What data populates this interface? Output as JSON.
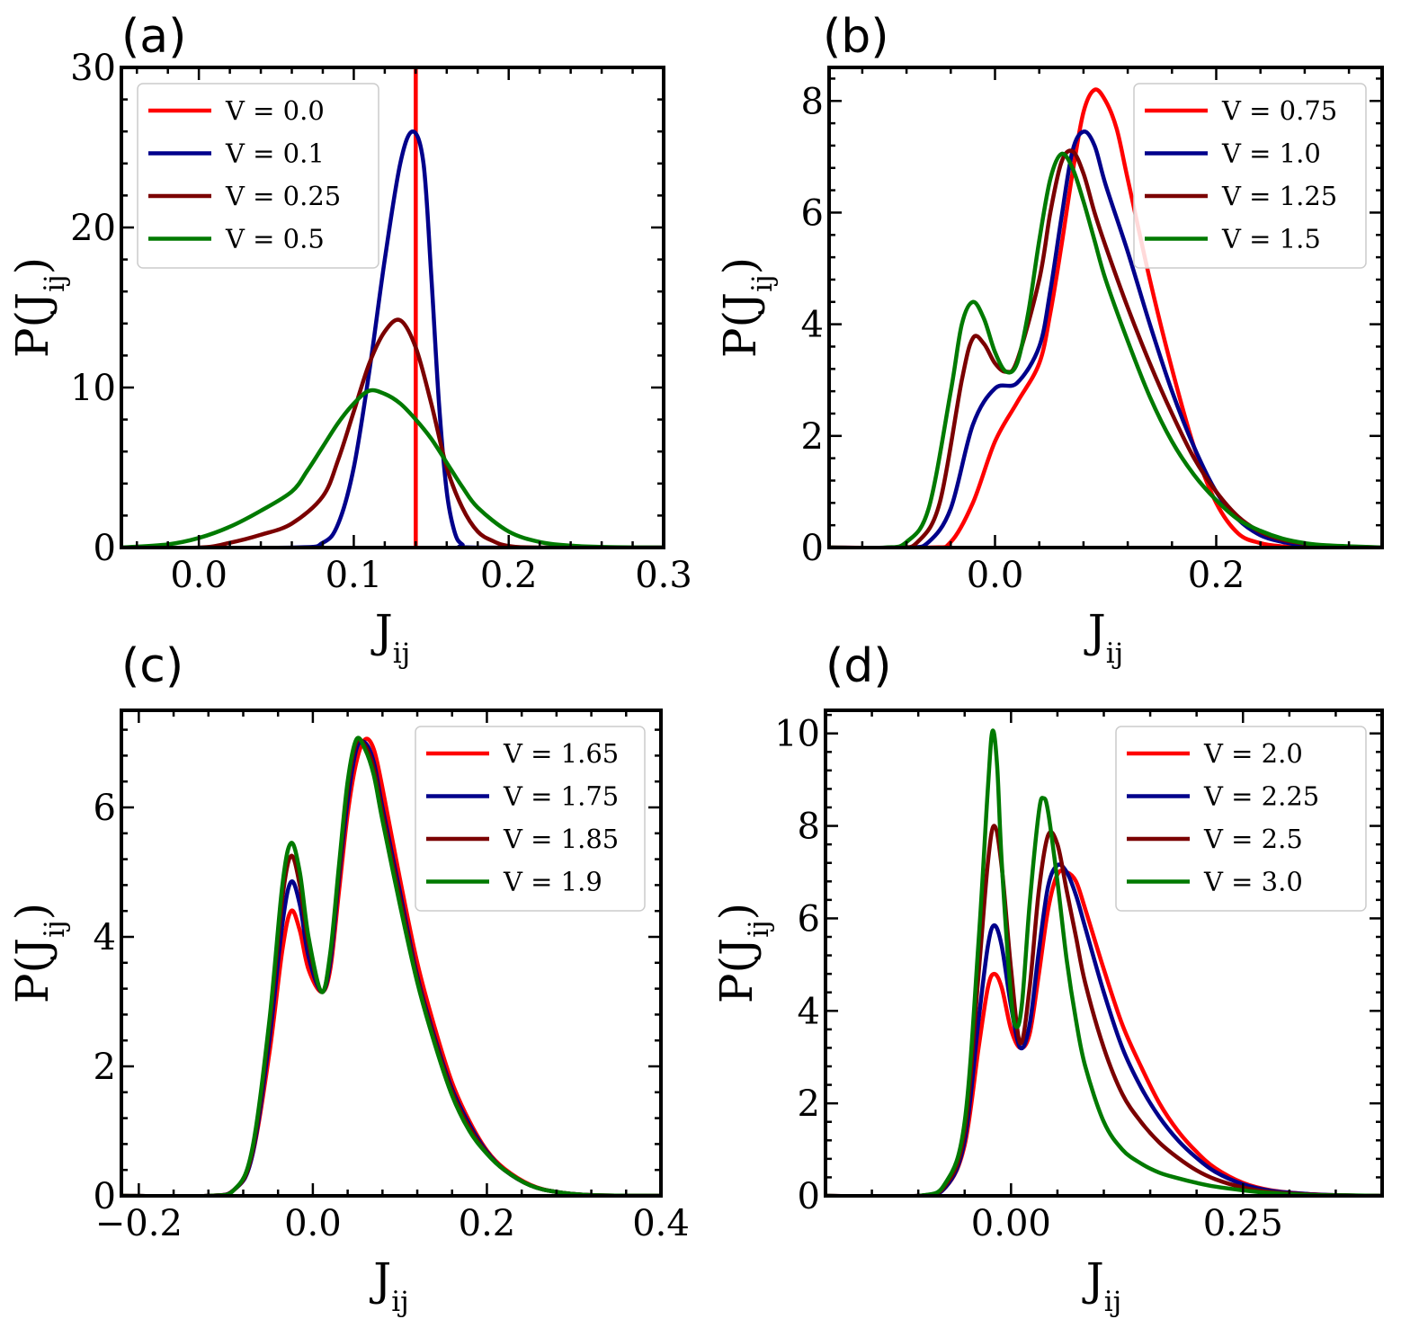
{
  "chart_data": [
    {
      "panel": "(a)",
      "type": "line",
      "xlabel": "J",
      "xlabel_sub": "ij",
      "ylabel": "P(J",
      "ylabel_sub": "ij",
      "ylabel_close": ")",
      "xlim": [
        -0.05,
        0.3
      ],
      "ylim": [
        0,
        30
      ],
      "xticks": [
        0.0,
        0.1,
        0.2,
        0.3
      ],
      "xtick_labels": [
        "0.0",
        "0.1",
        "0.2",
        "0.3"
      ],
      "yticks": [
        0,
        10,
        20,
        30
      ],
      "ytick_labels": [
        "0",
        "10",
        "20",
        "30"
      ],
      "legend_position": "upper-left",
      "series": [
        {
          "name": "V = 0.0",
          "color": "#ff0000",
          "vline": 0.14
        },
        {
          "name": "V = 0.1",
          "color": "#00008b",
          "x": [
            -0.05,
            0.06,
            0.08,
            0.09,
            0.1,
            0.11,
            0.12,
            0.13,
            0.138,
            0.145,
            0.15,
            0.155,
            0.16,
            0.165,
            0.17,
            0.18,
            0.3
          ],
          "y": [
            0,
            0,
            0.3,
            1.5,
            5,
            11,
            18,
            24,
            26,
            24,
            17,
            9,
            3.5,
            1,
            0.2,
            0,
            0
          ]
        },
        {
          "name": "V = 0.25",
          "color": "#7b0000",
          "x": [
            -0.05,
            0.0,
            0.02,
            0.04,
            0.06,
            0.08,
            0.09,
            0.1,
            0.11,
            0.12,
            0.13,
            0.14,
            0.15,
            0.16,
            0.17,
            0.18,
            0.19,
            0.2,
            0.22,
            0.3
          ],
          "y": [
            0,
            0,
            0.3,
            0.8,
            1.5,
            3.2,
            5.5,
            8.5,
            11.5,
            13.5,
            14.2,
            12.5,
            9,
            5,
            2.5,
            1,
            0.4,
            0.1,
            0,
            0
          ]
        },
        {
          "name": "V = 0.5",
          "color": "#007a00",
          "x": [
            -0.05,
            -0.02,
            0.0,
            0.02,
            0.04,
            0.06,
            0.07,
            0.08,
            0.09,
            0.1,
            0.11,
            0.12,
            0.13,
            0.14,
            0.15,
            0.16,
            0.17,
            0.18,
            0.2,
            0.22,
            0.24,
            0.26,
            0.28,
            0.3
          ],
          "y": [
            0,
            0.2,
            0.6,
            1.3,
            2.3,
            3.5,
            4.8,
            6.3,
            7.8,
            9,
            9.8,
            9.6,
            9,
            8,
            6.8,
            5.3,
            3.8,
            2.5,
            1,
            0.35,
            0.12,
            0.04,
            0.01,
            0
          ]
        }
      ]
    },
    {
      "panel": "(b)",
      "type": "line",
      "xlabel": "J",
      "xlabel_sub": "ij",
      "ylabel": "P(J",
      "ylabel_sub": "ij",
      "ylabel_close": ")",
      "xlim": [
        -0.15,
        0.35
      ],
      "ylim": [
        0,
        8.6
      ],
      "xticks": [
        0.0,
        0.2
      ],
      "xtick_labels": [
        "0.0",
        "0.2"
      ],
      "yticks": [
        0,
        2,
        4,
        6,
        8
      ],
      "ytick_labels": [
        "0",
        "2",
        "4",
        "6",
        "8"
      ],
      "legend_position": "upper-right",
      "series": [
        {
          "name": "V = 0.75",
          "color": "#ff0000",
          "x": [
            -0.15,
            -0.06,
            -0.04,
            -0.02,
            0.0,
            0.02,
            0.04,
            0.05,
            0.06,
            0.07,
            0.08,
            0.09,
            0.1,
            0.11,
            0.12,
            0.14,
            0.16,
            0.18,
            0.2,
            0.22,
            0.24,
            0.26,
            0.28,
            0.35
          ],
          "y": [
            0,
            0,
            0.1,
            0.8,
            1.9,
            2.6,
            3.3,
            4.2,
            5.4,
            6.7,
            7.8,
            8.2,
            8.0,
            7.5,
            6.6,
            4.8,
            3.2,
            1.8,
            0.8,
            0.25,
            0.08,
            0.02,
            0,
            0
          ]
        },
        {
          "name": "V = 1.0",
          "color": "#00008b",
          "x": [
            -0.15,
            -0.08,
            -0.06,
            -0.04,
            -0.02,
            0.0,
            0.02,
            0.04,
            0.05,
            0.06,
            0.07,
            0.08,
            0.09,
            0.1,
            0.12,
            0.14,
            0.16,
            0.18,
            0.2,
            0.22,
            0.24,
            0.26,
            0.28,
            0.3,
            0.35
          ],
          "y": [
            0,
            0,
            0.1,
            0.7,
            2.2,
            2.85,
            2.95,
            3.6,
            4.6,
            5.9,
            7.1,
            7.45,
            7.2,
            6.5,
            5.3,
            4.0,
            2.8,
            1.8,
            1.0,
            0.5,
            0.22,
            0.1,
            0.04,
            0.01,
            0
          ]
        },
        {
          "name": "V = 1.25",
          "color": "#7b0000",
          "x": [
            -0.15,
            -0.09,
            -0.07,
            -0.05,
            -0.03,
            -0.02,
            -0.01,
            0.0,
            0.01,
            0.02,
            0.04,
            0.05,
            0.06,
            0.07,
            0.08,
            0.09,
            0.1,
            0.12,
            0.14,
            0.16,
            0.18,
            0.2,
            0.22,
            0.24,
            0.26,
            0.28,
            0.3,
            0.35
          ],
          "y": [
            0,
            0,
            0.1,
            0.8,
            3.0,
            3.75,
            3.65,
            3.3,
            3.15,
            3.35,
            4.8,
            6.0,
            6.9,
            7.1,
            6.7,
            6.0,
            5.4,
            4.3,
            3.3,
            2.4,
            1.6,
            1.0,
            0.55,
            0.28,
            0.14,
            0.07,
            0.03,
            0
          ]
        },
        {
          "name": "V = 1.5",
          "color": "#007a00",
          "x": [
            -0.15,
            -0.1,
            -0.08,
            -0.06,
            -0.04,
            -0.03,
            -0.02,
            -0.01,
            0.0,
            0.01,
            0.02,
            0.03,
            0.04,
            0.05,
            0.06,
            0.07,
            0.08,
            0.09,
            0.1,
            0.12,
            0.14,
            0.16,
            0.18,
            0.2,
            0.22,
            0.24,
            0.26,
            0.28,
            0.3,
            0.35
          ],
          "y": [
            0,
            0,
            0.1,
            0.7,
            2.8,
            4.0,
            4.4,
            4.1,
            3.5,
            3.15,
            3.3,
            4.2,
            5.5,
            6.6,
            7.05,
            6.8,
            6.2,
            5.5,
            4.8,
            3.7,
            2.7,
            1.9,
            1.3,
            0.85,
            0.5,
            0.3,
            0.16,
            0.08,
            0.04,
            0
          ]
        }
      ]
    },
    {
      "panel": "(c)",
      "type": "line",
      "xlabel": "J",
      "xlabel_sub": "ij",
      "ylabel": "P(J",
      "ylabel_sub": "ij",
      "ylabel_close": ")",
      "xlim": [
        -0.22,
        0.4
      ],
      "ylim": [
        0,
        7.5
      ],
      "xticks": [
        -0.2,
        0.0,
        0.2,
        0.4
      ],
      "xtick_labels": [
        "−0.2",
        "0.0",
        "0.2",
        "0.4"
      ],
      "yticks": [
        0,
        2,
        4,
        6
      ],
      "ytick_labels": [
        "0",
        "2",
        "4",
        "6"
      ],
      "legend_position": "upper-right",
      "series": [
        {
          "name": "V = 1.65",
          "color": "#ff0000",
          "x": [
            -0.22,
            -0.12,
            -0.09,
            -0.07,
            -0.05,
            -0.035,
            -0.025,
            -0.015,
            -0.005,
            0.01,
            0.02,
            0.03,
            0.04,
            0.05,
            0.06,
            0.07,
            0.08,
            0.1,
            0.12,
            0.14,
            0.16,
            0.18,
            0.2,
            0.22,
            0.25,
            0.28,
            0.32,
            0.4
          ],
          "y": [
            0,
            0,
            0.1,
            0.6,
            2.2,
            3.8,
            4.4,
            4.1,
            3.5,
            3.15,
            3.5,
            4.7,
            5.9,
            6.7,
            7.05,
            6.9,
            6.3,
            4.9,
            3.6,
            2.6,
            1.75,
            1.15,
            0.7,
            0.42,
            0.17,
            0.06,
            0.01,
            0
          ]
        },
        {
          "name": "V = 1.75",
          "color": "#00008b",
          "x": [
            -0.22,
            -0.12,
            -0.09,
            -0.07,
            -0.05,
            -0.035,
            -0.025,
            -0.015,
            -0.005,
            0.01,
            0.02,
            0.03,
            0.04,
            0.05,
            0.06,
            0.07,
            0.08,
            0.1,
            0.12,
            0.14,
            0.16,
            0.18,
            0.2,
            0.22,
            0.25,
            0.28,
            0.32,
            0.4
          ],
          "y": [
            0,
            0,
            0.1,
            0.6,
            2.4,
            4.2,
            4.85,
            4.5,
            3.7,
            3.15,
            3.6,
            4.9,
            6.1,
            6.9,
            7.0,
            6.7,
            6.0,
            4.7,
            3.4,
            2.45,
            1.65,
            1.1,
            0.68,
            0.4,
            0.16,
            0.06,
            0.01,
            0
          ]
        },
        {
          "name": "V = 1.85",
          "color": "#7b0000",
          "x": [
            -0.22,
            -0.12,
            -0.09,
            -0.07,
            -0.05,
            -0.035,
            -0.025,
            -0.015,
            -0.005,
            0.01,
            0.02,
            0.03,
            0.04,
            0.05,
            0.06,
            0.07,
            0.08,
            0.1,
            0.12,
            0.14,
            0.16,
            0.18,
            0.2,
            0.22,
            0.25,
            0.28,
            0.32,
            0.4
          ],
          "y": [
            0,
            0,
            0.1,
            0.65,
            2.6,
            4.6,
            5.25,
            4.8,
            3.9,
            3.15,
            3.7,
            5.0,
            6.3,
            7.0,
            6.95,
            6.6,
            5.9,
            4.6,
            3.35,
            2.4,
            1.6,
            1.05,
            0.66,
            0.4,
            0.16,
            0.06,
            0.01,
            0
          ]
        },
        {
          "name": "V = 1.9",
          "color": "#007a00",
          "x": [
            -0.22,
            -0.12,
            -0.09,
            -0.07,
            -0.05,
            -0.035,
            -0.025,
            -0.015,
            -0.005,
            0.01,
            0.02,
            0.03,
            0.04,
            0.05,
            0.06,
            0.07,
            0.08,
            0.1,
            0.12,
            0.14,
            0.16,
            0.18,
            0.2,
            0.22,
            0.25,
            0.28,
            0.32,
            0.4
          ],
          "y": [
            0,
            0,
            0.1,
            0.7,
            2.7,
            4.8,
            5.45,
            5.0,
            4.0,
            3.15,
            3.75,
            5.1,
            6.4,
            7.05,
            6.9,
            6.5,
            5.8,
            4.5,
            3.3,
            2.35,
            1.55,
            1.0,
            0.65,
            0.4,
            0.16,
            0.06,
            0.01,
            0
          ]
        }
      ]
    },
    {
      "panel": "(d)",
      "type": "line",
      "xlabel": "J",
      "xlabel_sub": "ij",
      "ylabel": "P(J",
      "ylabel_sub": "ij",
      "ylabel_close": ")",
      "xlim": [
        -0.2,
        0.4
      ],
      "ylim": [
        0,
        10.5
      ],
      "xticks": [
        0.0,
        0.25
      ],
      "xtick_labels": [
        "0.00",
        "0.25"
      ],
      "yticks": [
        0,
        2,
        4,
        6,
        8,
        10
      ],
      "ytick_labels": [
        "0",
        "2",
        "4",
        "6",
        "8",
        "10"
      ],
      "legend_position": "upper-right",
      "series": [
        {
          "name": "V = 2.0",
          "color": "#ff0000",
          "x": [
            -0.2,
            -0.1,
            -0.07,
            -0.05,
            -0.035,
            -0.025,
            -0.018,
            -0.01,
            0.0,
            0.01,
            0.02,
            0.03,
            0.04,
            0.05,
            0.06,
            0.07,
            0.08,
            0.1,
            0.12,
            0.14,
            0.16,
            0.18,
            0.2,
            0.22,
            0.25,
            0.28,
            0.32,
            0.36,
            0.4
          ],
          "y": [
            0,
            0,
            0.2,
            1.1,
            3.2,
            4.5,
            4.8,
            4.5,
            3.6,
            3.2,
            3.5,
            4.8,
            6.2,
            6.95,
            7.0,
            6.8,
            6.2,
            4.9,
            3.7,
            2.8,
            2.0,
            1.4,
            0.95,
            0.6,
            0.28,
            0.12,
            0.04,
            0.01,
            0
          ]
        },
        {
          "name": "V = 2.25",
          "color": "#00008b",
          "x": [
            -0.2,
            -0.1,
            -0.07,
            -0.05,
            -0.035,
            -0.025,
            -0.018,
            -0.01,
            0.0,
            0.01,
            0.02,
            0.03,
            0.04,
            0.05,
            0.06,
            0.07,
            0.08,
            0.1,
            0.12,
            0.14,
            0.16,
            0.18,
            0.2,
            0.22,
            0.25,
            0.28,
            0.32,
            0.36,
            0.4
          ],
          "y": [
            0,
            0,
            0.2,
            1.2,
            3.8,
            5.4,
            5.85,
            5.4,
            4.1,
            3.2,
            3.7,
            5.3,
            6.7,
            7.15,
            7.0,
            6.5,
            5.8,
            4.4,
            3.2,
            2.35,
            1.7,
            1.2,
            0.82,
            0.52,
            0.25,
            0.11,
            0.04,
            0.01,
            0
          ]
        },
        {
          "name": "V = 2.5",
          "color": "#7b0000",
          "x": [
            -0.2,
            -0.1,
            -0.07,
            -0.05,
            -0.035,
            -0.025,
            -0.018,
            -0.01,
            0.0,
            0.01,
            0.02,
            0.03,
            0.04,
            0.05,
            0.06,
            0.07,
            0.08,
            0.1,
            0.12,
            0.14,
            0.16,
            0.18,
            0.2,
            0.22,
            0.25,
            0.28,
            0.32,
            0.36,
            0.4
          ],
          "y": [
            0,
            0,
            0.25,
            1.4,
            4.8,
            7.2,
            8.0,
            7.1,
            4.9,
            3.3,
            4.5,
            6.6,
            7.8,
            7.6,
            6.6,
            5.6,
            4.6,
            3.2,
            2.2,
            1.6,
            1.15,
            0.82,
            0.55,
            0.36,
            0.18,
            0.08,
            0.03,
            0.01,
            0
          ]
        },
        {
          "name": "V = 3.0",
          "color": "#007a00",
          "x": [
            -0.2,
            -0.1,
            -0.07,
            -0.05,
            -0.035,
            -0.025,
            -0.02,
            -0.015,
            -0.01,
            0.0,
            0.006,
            0.012,
            0.02,
            0.03,
            0.035,
            0.04,
            0.05,
            0.06,
            0.07,
            0.08,
            0.1,
            0.12,
            0.14,
            0.16,
            0.18,
            0.2,
            0.22,
            0.25,
            0.28,
            0.32,
            0.36,
            0.4
          ],
          "y": [
            0,
            0,
            0.3,
            1.6,
            5.5,
            8.8,
            10.05,
            9.3,
            7.2,
            4.3,
            3.65,
            4.2,
            6.3,
            8.3,
            8.6,
            8.3,
            6.8,
            5.1,
            3.8,
            2.8,
            1.6,
            1.0,
            0.7,
            0.5,
            0.38,
            0.28,
            0.2,
            0.12,
            0.06,
            0.02,
            0.01,
            0
          ]
        }
      ]
    }
  ]
}
